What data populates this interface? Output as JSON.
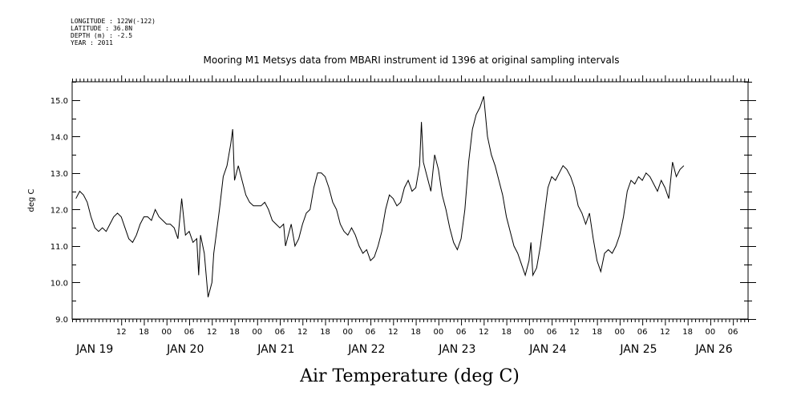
{
  "meta": {
    "longitude": "LONGITUDE : 122W(-122)",
    "latitude": "LATITUDE : 36.8N",
    "depth": "DEPTH (m) : -2.5",
    "year": "YEAR : 2011"
  },
  "chart_data": {
    "type": "line",
    "title": "Mooring M1 Metsys data from MBARI instrument id 1396 at original sampling intervals",
    "xlabel": "Air Temperature (deg C)",
    "ylabel": "deg C",
    "ylim": [
      9.0,
      15.5
    ],
    "xlim_hours": [
      0,
      179
    ],
    "x_unit": "hours since JAN 18 23:00, 2011",
    "yticks": [
      "9.0",
      "10.0",
      "11.0",
      "12.0",
      "13.0",
      "14.0",
      "15.0"
    ],
    "hour_ticks": [
      {
        "h": 13,
        "label": "12"
      },
      {
        "h": 19,
        "label": "18"
      },
      {
        "h": 25,
        "label": "00"
      },
      {
        "h": 31,
        "label": "06"
      },
      {
        "h": 37,
        "label": "12"
      },
      {
        "h": 43,
        "label": "18"
      },
      {
        "h": 49,
        "label": "00"
      },
      {
        "h": 55,
        "label": "06"
      },
      {
        "h": 61,
        "label": "12"
      },
      {
        "h": 67,
        "label": "18"
      },
      {
        "h": 73,
        "label": "00"
      },
      {
        "h": 79,
        "label": "06"
      },
      {
        "h": 85,
        "label": "12"
      },
      {
        "h": 91,
        "label": "18"
      },
      {
        "h": 97,
        "label": "00"
      },
      {
        "h": 103,
        "label": "06"
      },
      {
        "h": 109,
        "label": "12"
      },
      {
        "h": 115,
        "label": "18"
      },
      {
        "h": 121,
        "label": "00"
      },
      {
        "h": 127,
        "label": "06"
      },
      {
        "h": 133,
        "label": "12"
      },
      {
        "h": 139,
        "label": "18"
      },
      {
        "h": 145,
        "label": "00"
      },
      {
        "h": 151,
        "label": "06"
      },
      {
        "h": 157,
        "label": "12"
      },
      {
        "h": 163,
        "label": "18"
      },
      {
        "h": 169,
        "label": "00"
      },
      {
        "h": 175,
        "label": "06"
      }
    ],
    "day_labels": [
      {
        "h": 6,
        "label": "JAN 19"
      },
      {
        "h": 30,
        "label": "JAN 20"
      },
      {
        "h": 54,
        "label": "JAN 21"
      },
      {
        "h": 78,
        "label": "JAN 22"
      },
      {
        "h": 102,
        "label": "JAN 23"
      },
      {
        "h": 126,
        "label": "JAN 24"
      },
      {
        "h": 150,
        "label": "JAN 25"
      },
      {
        "h": 170,
        "label": "JAN 26"
      }
    ],
    "series": [
      {
        "points": [
          [
            1,
            12.3
          ],
          [
            2,
            12.5
          ],
          [
            3,
            12.4
          ],
          [
            4,
            12.2
          ],
          [
            5,
            11.8
          ],
          [
            6,
            11.5
          ],
          [
            7,
            11.4
          ],
          [
            8,
            11.5
          ],
          [
            9,
            11.4
          ],
          [
            10,
            11.6
          ],
          [
            11,
            11.8
          ],
          [
            12,
            11.9
          ],
          [
            13,
            11.8
          ],
          [
            14,
            11.5
          ],
          [
            15,
            11.2
          ],
          [
            16,
            11.1
          ],
          [
            17,
            11.3
          ],
          [
            18,
            11.6
          ],
          [
            19,
            11.8
          ],
          [
            20,
            11.8
          ],
          [
            21,
            11.7
          ],
          [
            22,
            12.0
          ],
          [
            23,
            11.8
          ],
          [
            24,
            11.7
          ],
          [
            25,
            11.6
          ],
          [
            26,
            11.6
          ],
          [
            27,
            11.5
          ],
          [
            28,
            11.2
          ],
          [
            29,
            12.3
          ],
          [
            30,
            11.3
          ],
          [
            31,
            11.4
          ],
          [
            32,
            11.1
          ],
          [
            33,
            11.2
          ],
          [
            33.5,
            10.2
          ],
          [
            34,
            11.3
          ],
          [
            35,
            10.8
          ],
          [
            36,
            9.6
          ],
          [
            37,
            10.0
          ],
          [
            37.5,
            10.8
          ],
          [
            38,
            11.2
          ],
          [
            39,
            12.0
          ],
          [
            40,
            12.9
          ],
          [
            41,
            13.2
          ],
          [
            42,
            13.8
          ],
          [
            42.5,
            14.2
          ],
          [
            43,
            12.8
          ],
          [
            44,
            13.2
          ],
          [
            45,
            12.8
          ],
          [
            46,
            12.4
          ],
          [
            47,
            12.2
          ],
          [
            48,
            12.1
          ],
          [
            49,
            12.1
          ],
          [
            50,
            12.1
          ],
          [
            51,
            12.2
          ],
          [
            52,
            12.0
          ],
          [
            53,
            11.7
          ],
          [
            54,
            11.6
          ],
          [
            55,
            11.5
          ],
          [
            56,
            11.6
          ],
          [
            56.5,
            11.0
          ],
          [
            57,
            11.2
          ],
          [
            58,
            11.6
          ],
          [
            59,
            11.0
          ],
          [
            60,
            11.2
          ],
          [
            61,
            11.6
          ],
          [
            62,
            11.9
          ],
          [
            63,
            12.0
          ],
          [
            64,
            12.6
          ],
          [
            65,
            13.0
          ],
          [
            66,
            13.0
          ],
          [
            67,
            12.9
          ],
          [
            68,
            12.6
          ],
          [
            69,
            12.2
          ],
          [
            70,
            12.0
          ],
          [
            71,
            11.6
          ],
          [
            72,
            11.4
          ],
          [
            73,
            11.3
          ],
          [
            74,
            11.5
          ],
          [
            75,
            11.3
          ],
          [
            76,
            11.0
          ],
          [
            77,
            10.8
          ],
          [
            78,
            10.9
          ],
          [
            79,
            10.6
          ],
          [
            80,
            10.7
          ],
          [
            81,
            11.0
          ],
          [
            82,
            11.4
          ],
          [
            83,
            12.0
          ],
          [
            84,
            12.4
          ],
          [
            85,
            12.3
          ],
          [
            86,
            12.1
          ],
          [
            87,
            12.2
          ],
          [
            88,
            12.6
          ],
          [
            89,
            12.8
          ],
          [
            90,
            12.5
          ],
          [
            91,
            12.6
          ],
          [
            92,
            13.2
          ],
          [
            92.5,
            14.4
          ],
          [
            93,
            13.3
          ],
          [
            94,
            12.9
          ],
          [
            95,
            12.5
          ],
          [
            96,
            13.5
          ],
          [
            97,
            13.1
          ],
          [
            98,
            12.4
          ],
          [
            99,
            12.0
          ],
          [
            100,
            11.5
          ],
          [
            101,
            11.1
          ],
          [
            102,
            10.9
          ],
          [
            103,
            11.2
          ],
          [
            104,
            12.0
          ],
          [
            105,
            13.3
          ],
          [
            106,
            14.2
          ],
          [
            107,
            14.6
          ],
          [
            108,
            14.8
          ],
          [
            109,
            15.1
          ],
          [
            110,
            14.0
          ],
          [
            111,
            13.5
          ],
          [
            112,
            13.2
          ],
          [
            113,
            12.8
          ],
          [
            114,
            12.4
          ],
          [
            115,
            11.8
          ],
          [
            116,
            11.4
          ],
          [
            117,
            11.0
          ],
          [
            118,
            10.8
          ],
          [
            119,
            10.5
          ],
          [
            120,
            10.2
          ],
          [
            121,
            10.6
          ],
          [
            121.5,
            11.1
          ],
          [
            122,
            10.2
          ],
          [
            123,
            10.4
          ],
          [
            124,
            11.0
          ],
          [
            125,
            11.8
          ],
          [
            126,
            12.6
          ],
          [
            127,
            12.9
          ],
          [
            128,
            12.8
          ],
          [
            129,
            13.0
          ],
          [
            130,
            13.2
          ],
          [
            131,
            13.1
          ],
          [
            132,
            12.9
          ],
          [
            133,
            12.6
          ],
          [
            134,
            12.1
          ],
          [
            135,
            11.9
          ],
          [
            136,
            11.6
          ],
          [
            137,
            11.9
          ],
          [
            138,
            11.2
          ],
          [
            139,
            10.6
          ],
          [
            140,
            10.3
          ],
          [
            141,
            10.8
          ],
          [
            142,
            10.9
          ],
          [
            143,
            10.8
          ],
          [
            144,
            11.0
          ],
          [
            145,
            11.3
          ],
          [
            146,
            11.8
          ],
          [
            147,
            12.5
          ],
          [
            148,
            12.8
          ],
          [
            149,
            12.7
          ],
          [
            150,
            12.9
          ],
          [
            151,
            12.8
          ],
          [
            152,
            13.0
          ],
          [
            153,
            12.9
          ],
          [
            154,
            12.7
          ],
          [
            155,
            12.5
          ],
          [
            156,
            12.8
          ],
          [
            157,
            12.6
          ],
          [
            158,
            12.3
          ],
          [
            159,
            13.3
          ],
          [
            160,
            12.9
          ],
          [
            161,
            13.1
          ],
          [
            162,
            13.2
          ]
        ]
      }
    ]
  }
}
